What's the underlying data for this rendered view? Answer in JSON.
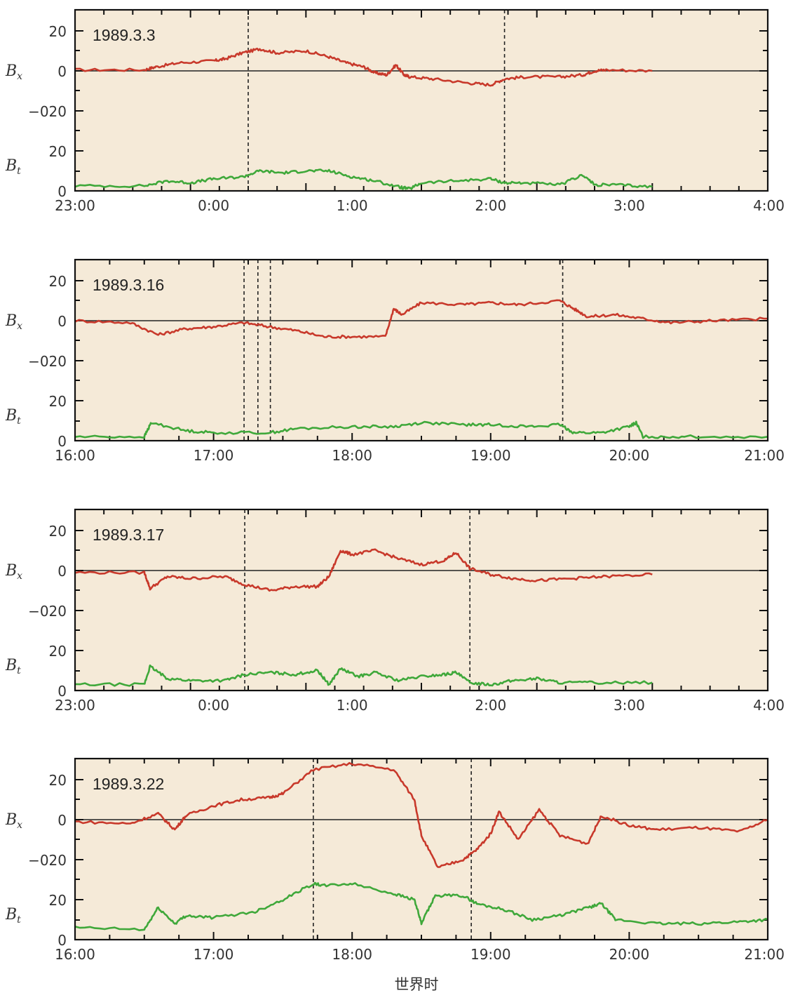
{
  "colors": {
    "background": "#f5ead8",
    "bx": "#c8392b",
    "bt": "#3fa83a",
    "axis": "#111111"
  },
  "y_label_bx": "B",
  "y_label_bx_sub": "x",
  "y_label_bt": "B",
  "y_label_bt_sub": "t",
  "bx_ticks": [
    "20",
    "0",
    "−020"
  ],
  "bt_ticks": [
    "20",
    "0"
  ],
  "xlabel": "世界时",
  "chart_data": [
    {
      "type": "line",
      "title": "1989.3.3",
      "x_ticks": [
        "23:00",
        "0:00",
        "1:00",
        "2:00",
        "3:00",
        "4:00"
      ],
      "x_hours": [
        -1,
        5
      ],
      "vlines": [
        0.5,
        2.72
      ],
      "series": [
        {
          "name": "Bx",
          "x": [
            -1.0,
            -0.4,
            -0.3,
            -0.1,
            0.2,
            0.3,
            0.45,
            0.6,
            0.75,
            1.0,
            1.2,
            1.35,
            1.5,
            1.6,
            1.7,
            1.78,
            1.85,
            1.9,
            2.1,
            2.4,
            2.6,
            2.72,
            2.9,
            3.2,
            3.4,
            3.5,
            3.6,
            4.0
          ],
          "values": [
            0.5,
            0.5,
            2,
            4,
            5,
            6,
            9,
            11,
            9,
            10,
            7,
            4,
            2,
            -1,
            -2,
            3,
            -2,
            -3,
            -4,
            -6,
            -7,
            -4,
            -3,
            -3,
            -2,
            0,
            0.5,
            0
          ]
        },
        {
          "name": "Bt",
          "x": [
            -1.0,
            -0.4,
            -0.2,
            0.0,
            0.2,
            0.45,
            0.6,
            0.8,
            1.0,
            1.2,
            1.4,
            1.6,
            1.8,
            1.9,
            2.0,
            2.3,
            2.6,
            2.72,
            2.9,
            3.2,
            3.4,
            3.5,
            3.7,
            4.0
          ],
          "values": [
            2.5,
            2.5,
            5,
            4,
            6,
            7,
            10,
            9,
            10,
            10,
            7,
            5,
            2,
            1,
            4,
            5,
            6,
            4,
            4,
            3,
            8,
            3,
            3,
            2
          ]
        }
      ]
    },
    {
      "type": "line",
      "title": "1989.3.16",
      "x_ticks": [
        "16:00",
        "17:00",
        "18:00",
        "19:00",
        "20:00",
        "21:00"
      ],
      "x_hours": [
        16,
        21
      ],
      "vlines": [
        17.22,
        17.32,
        17.41
      ],
      "vlines_b": [
        19.52
      ],
      "series": [
        {
          "name": "Bx",
          "x": [
            16.0,
            16.4,
            16.6,
            16.8,
            17.0,
            17.22,
            17.4,
            17.6,
            17.8,
            18.0,
            18.24,
            18.3,
            18.36,
            18.5,
            18.8,
            19.0,
            19.2,
            19.5,
            19.6,
            19.7,
            19.9,
            20.1,
            20.3,
            20.6,
            21.0
          ],
          "values": [
            0,
            -1,
            -7,
            -4,
            -3,
            -1,
            -3,
            -5,
            -8,
            -8,
            -8,
            6,
            3,
            9,
            8,
            9,
            8,
            10,
            6,
            2,
            3,
            1,
            -1,
            0,
            1
          ]
        },
        {
          "name": "Bt",
          "x": [
            16.0,
            16.5,
            16.55,
            16.8,
            17.0,
            17.4,
            17.6,
            18.0,
            18.3,
            18.5,
            18.8,
            19.0,
            19.3,
            19.5,
            19.6,
            19.8,
            20.0,
            20.05,
            20.1,
            20.4,
            21.0
          ],
          "values": [
            2,
            2,
            9,
            5,
            4,
            4,
            6,
            7,
            7,
            9,
            8,
            8,
            7,
            8,
            4,
            4,
            7,
            9,
            2,
            2,
            2
          ]
        }
      ]
    },
    {
      "type": "line",
      "title": "1989.3.17",
      "x_ticks": [
        "23:00",
        "0:00",
        "1:00",
        "2:00",
        "3:00",
        "4:00"
      ],
      "x_hours": [
        -1,
        5
      ],
      "vlines": [
        0.47,
        2.42
      ],
      "series": [
        {
          "name": "Bx",
          "x": [
            -1.0,
            -0.4,
            -0.35,
            -0.2,
            0.0,
            0.3,
            0.47,
            0.7,
            0.9,
            1.1,
            1.2,
            1.3,
            1.4,
            1.6,
            1.8,
            2.0,
            2.2,
            2.3,
            2.42,
            2.6,
            2.8,
            3.0,
            3.3,
            3.6,
            4.0
          ],
          "values": [
            -1,
            -1,
            -9,
            -3,
            -4,
            -3,
            -7,
            -10,
            -8,
            -8,
            -3,
            10,
            8,
            10,
            6,
            3,
            5,
            9,
            1,
            -2,
            -4,
            -5,
            -4,
            -3,
            -2
          ]
        },
        {
          "name": "Bt",
          "x": [
            -1.0,
            -0.4,
            -0.35,
            -0.2,
            0.0,
            0.3,
            0.47,
            0.7,
            0.9,
            1.1,
            1.2,
            1.3,
            1.45,
            1.6,
            1.8,
            2.0,
            2.2,
            2.3,
            2.42,
            2.6,
            2.8,
            3.0,
            3.2,
            3.5,
            4.0
          ],
          "values": [
            3,
            3,
            12,
            6,
            5,
            5,
            8,
            9,
            8,
            10,
            3,
            11,
            7,
            9,
            5,
            7,
            8,
            9,
            4,
            3,
            5,
            6,
            4,
            4,
            4
          ]
        }
      ]
    },
    {
      "type": "line",
      "title": "1989.3.22",
      "x_ticks": [
        "16:00",
        "17:00",
        "18:00",
        "19:00",
        "20:00",
        "21:00"
      ],
      "x_hours": [
        16,
        21
      ],
      "vlines": [
        17.72,
        18.86
      ],
      "series": [
        {
          "name": "Bx",
          "x": [
            16.0,
            16.4,
            16.6,
            16.72,
            16.8,
            17.0,
            17.2,
            17.4,
            17.5,
            17.72,
            18.0,
            18.3,
            18.45,
            18.5,
            18.62,
            18.8,
            18.9,
            19.0,
            19.06,
            19.2,
            19.35,
            19.5,
            19.7,
            19.8,
            20.0,
            20.2,
            20.5,
            20.8,
            21.0
          ],
          "values": [
            -1,
            -2,
            3,
            -5,
            2,
            7,
            10,
            11,
            13,
            25,
            28,
            25,
            10,
            -8,
            -24,
            -20,
            -15,
            -7,
            4,
            -10,
            5,
            -8,
            -12,
            2,
            -3,
            -5,
            -4,
            -6,
            0
          ]
        },
        {
          "name": "Bt",
          "x": [
            16.0,
            16.5,
            16.6,
            16.72,
            16.8,
            17.0,
            17.3,
            17.5,
            17.72,
            17.8,
            18.0,
            18.3,
            18.45,
            18.5,
            18.6,
            18.8,
            18.9,
            19.1,
            19.3,
            19.5,
            19.7,
            19.8,
            19.9,
            20.2,
            20.5,
            20.8,
            21.0
          ],
          "values": [
            6,
            5,
            16,
            8,
            12,
            11,
            14,
            20,
            28,
            27,
            28,
            23,
            20,
            8,
            22,
            22,
            18,
            15,
            10,
            12,
            16,
            18,
            10,
            8,
            8,
            9,
            10
          ]
        }
      ]
    }
  ]
}
